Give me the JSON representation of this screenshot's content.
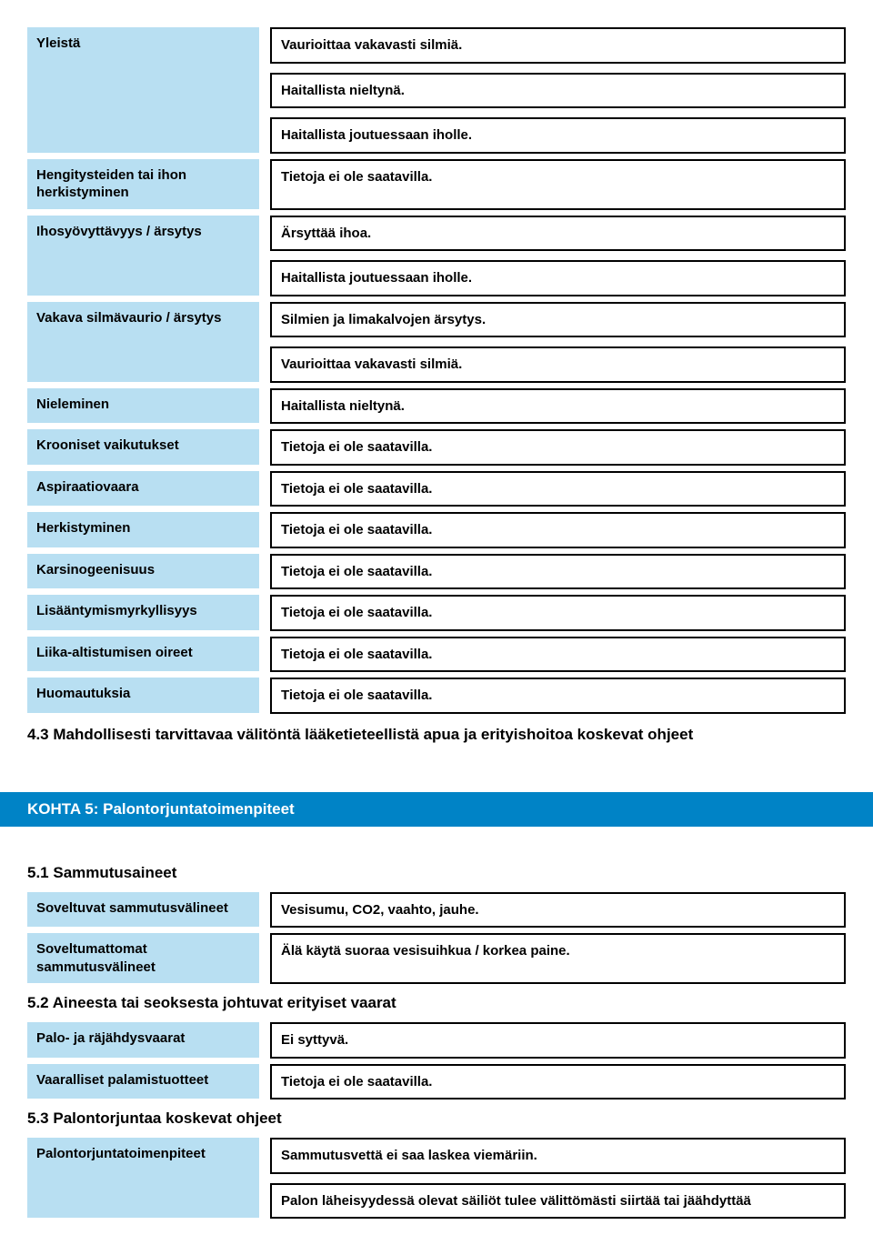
{
  "colors": {
    "label_bg": "#b8dff2",
    "value_border": "#000000",
    "page_bg": "#ffffff",
    "bar_bg": "#0083c6",
    "bar_fg": "#ffffff",
    "text": "#000000"
  },
  "section4": {
    "rows": [
      {
        "label": "Yleistä",
        "values": [
          "Vaurioittaa vakavasti silmiä.",
          "Haitallista nieltynä.",
          "Haitallista joutuessaan iholle."
        ]
      },
      {
        "label": "Hengitysteiden tai ihon herkistyminen",
        "values": [
          "Tietoja ei ole saatavilla."
        ]
      },
      {
        "label": "Ihosyövyttävyys / ärsytys",
        "values": [
          "Ärsyttää ihoa.",
          "Haitallista joutuessaan iholle."
        ]
      },
      {
        "label": "Vakava silmävaurio / ärsytys",
        "values": [
          "Silmien ja limakalvojen ärsytys.",
          "Vaurioittaa vakavasti silmiä."
        ]
      },
      {
        "label": "Nieleminen",
        "values": [
          "Haitallista nieltynä."
        ]
      },
      {
        "label": "Krooniset vaikutukset",
        "values": [
          "Tietoja ei ole saatavilla."
        ]
      },
      {
        "label": "Aspiraatiovaara",
        "values": [
          "Tietoja ei ole saatavilla."
        ]
      },
      {
        "label": "Herkistyminen",
        "values": [
          "Tietoja ei ole saatavilla."
        ]
      },
      {
        "label": "Karsinogeenisuus",
        "values": [
          "Tietoja ei ole saatavilla."
        ]
      },
      {
        "label": "Lisääntymismyrkyllisyys",
        "values": [
          "Tietoja ei ole saatavilla."
        ]
      },
      {
        "label": "Liika-altistumisen oireet",
        "values": [
          "Tietoja ei ole saatavilla."
        ]
      },
      {
        "label": "Huomautuksia",
        "values": [
          "Tietoja ei ole saatavilla."
        ]
      }
    ],
    "heading_4_3": "4.3 Mahdollisesti tarvittavaa välitöntä lääketieteellistä apua ja erityishoitoa koskevat ohjeet"
  },
  "section5": {
    "title": "KOHTA 5: Palontorjuntatoimenpiteet",
    "h5_1": "5.1 Sammutusaineet",
    "rows5_1": [
      {
        "label": "Soveltuvat sammutusvälineet",
        "values": [
          "Vesisumu, CO2, vaahto, jauhe."
        ]
      },
      {
        "label": "Soveltumattomat sammutusvälineet",
        "values": [
          "Älä käytä suoraa vesisuihkua / korkea paine."
        ]
      }
    ],
    "h5_2": "5.2 Aineesta tai seoksesta johtuvat erityiset vaarat",
    "rows5_2": [
      {
        "label": "Palo- ja räjähdysvaarat",
        "values": [
          "Ei syttyvä."
        ]
      },
      {
        "label": "Vaaralliset palamistuotteet",
        "values": [
          "Tietoja ei ole saatavilla."
        ]
      }
    ],
    "h5_3": "5.3 Palontorjuntaa koskevat ohjeet",
    "rows5_3": [
      {
        "label": "Palontorjuntatoimenpiteet",
        "values": [
          "Sammutusvettä ei saa laskea viemäriin.",
          "Palon läheisyydessä olevat säiliöt tulee välittömästi siirtää tai jäähdyttää"
        ]
      }
    ]
  }
}
